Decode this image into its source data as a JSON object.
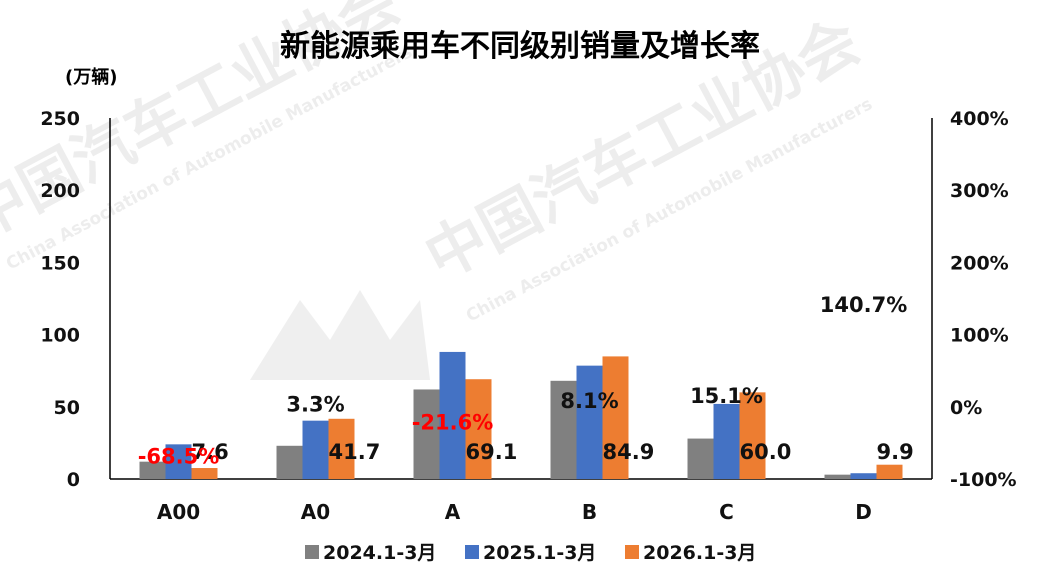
{
  "chart_data": {
    "type": "bar",
    "title": "新能源乘用车不同级别销量及增长率",
    "y_unit_label": "(万辆)",
    "categories": [
      "A00",
      "A0",
      "A",
      "B",
      "C",
      "D"
    ],
    "series": [
      {
        "name": "2024.1-3月",
        "color": "#808080",
        "values": [
          12,
          23,
          62,
          68,
          28,
          3
        ]
      },
      {
        "name": "2025.1-3月",
        "color": "#4472C4",
        "values": [
          24,
          40.4,
          88,
          78.5,
          52,
          4
        ]
      },
      {
        "name": "2026.1-3月",
        "color": "#ED7D31",
        "values": [
          7.6,
          41.7,
          69.1,
          84.9,
          60.0,
          9.9
        ]
      }
    ],
    "value_labels": [
      "7.6",
      "41.7",
      "69.1",
      "84.9",
      "60.0",
      "9.9"
    ],
    "growth_rate": [
      -68.5,
      3.3,
      -21.6,
      8.1,
      15.1,
      140.7
    ],
    "growth_labels": [
      "-68.5%",
      "3.3%",
      "-21.6%",
      "8.1%",
      "15.1%",
      "140.7%"
    ],
    "negative_color": "#FF0000",
    "ylim": [
      0,
      250
    ],
    "yticks": [
      "0",
      "50",
      "100",
      "150",
      "200",
      "250"
    ],
    "y2lim": [
      -100,
      400
    ],
    "y2ticks": [
      "-100%",
      "0%",
      "100%",
      "200%",
      "300%",
      "400%"
    ],
    "legend_position": "bottom",
    "grid": false,
    "watermark": {
      "cn": "中国汽车工业协会",
      "en": "China Association of Automobile Manufacturers"
    }
  }
}
